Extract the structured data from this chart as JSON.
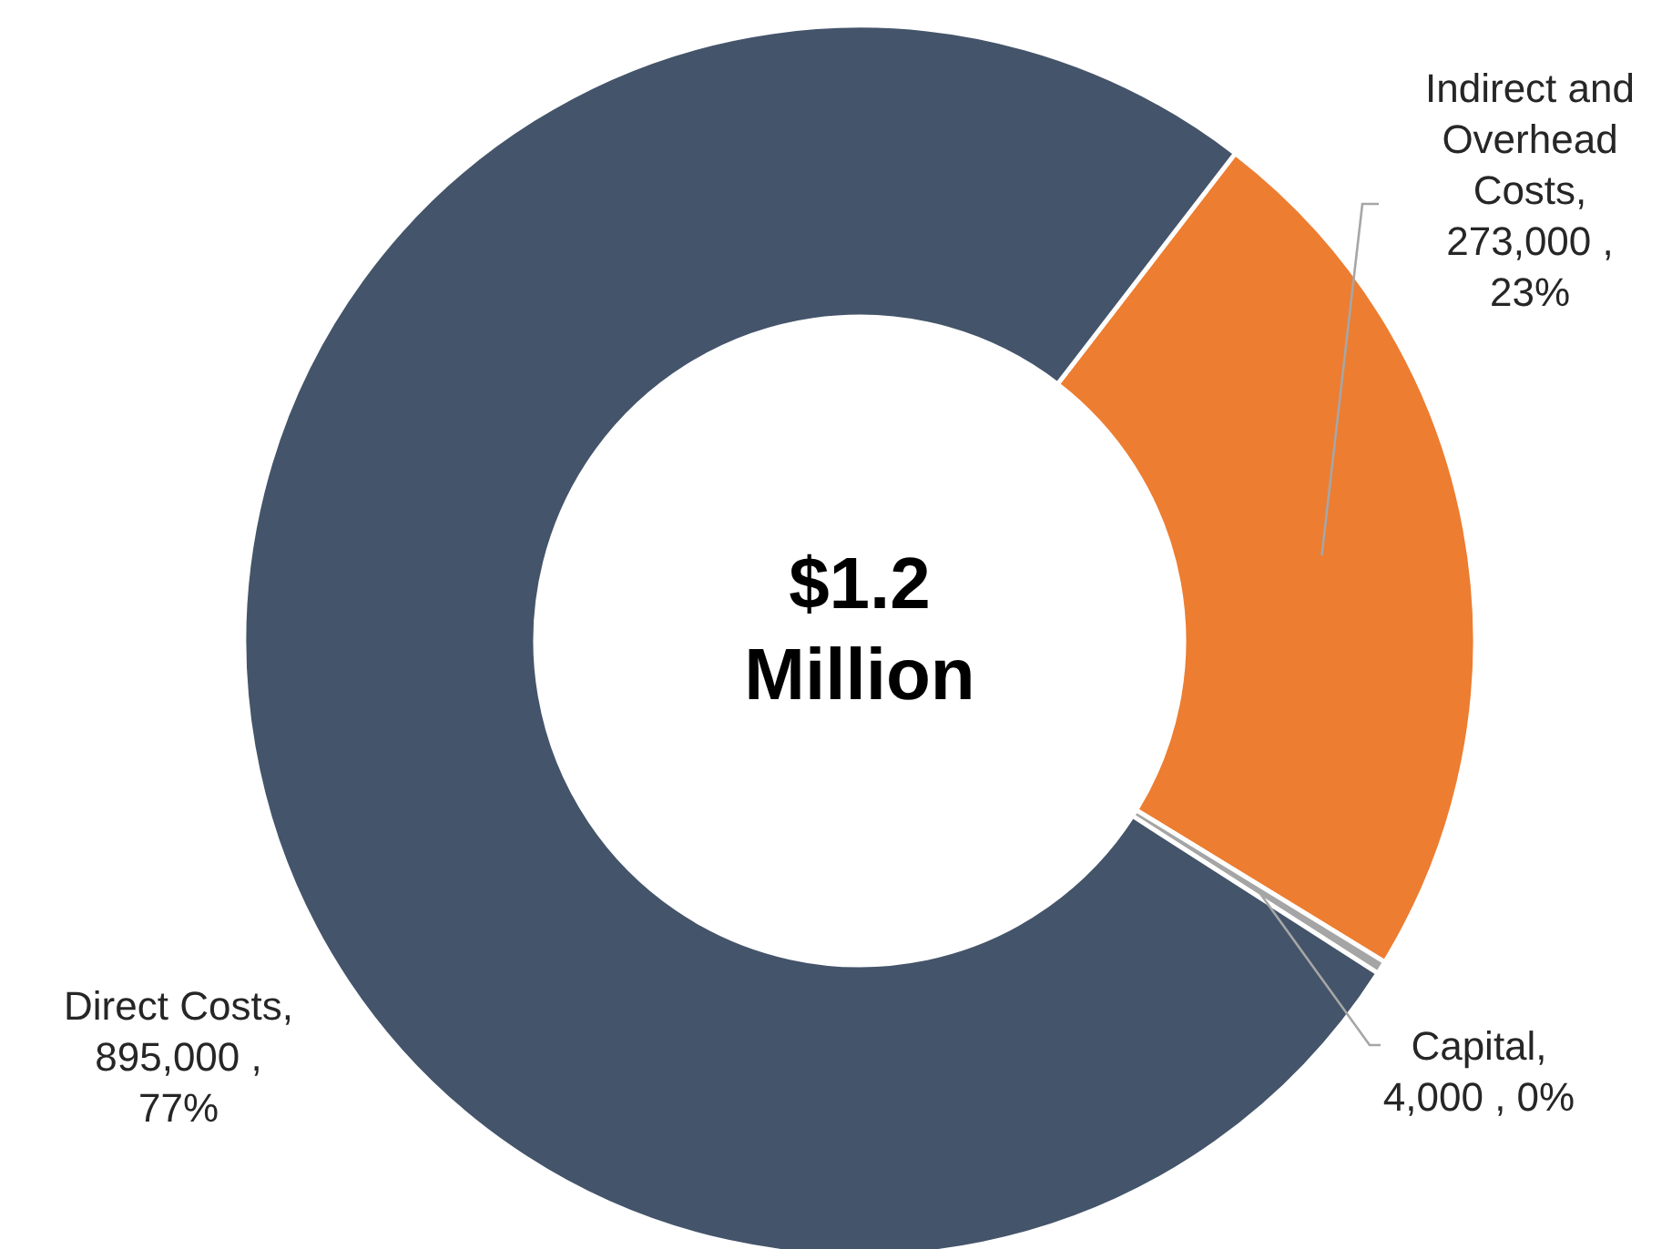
{
  "chart_data": {
    "type": "donut",
    "categories": [
      "Indirect and Overhead Costs",
      "Capital",
      "Direct Costs"
    ],
    "values": [
      273000,
      4000,
      895000
    ],
    "colors": [
      "#ed7d31",
      "#a5a5a5",
      "#44546a"
    ],
    "value_labels": [
      ", 273,000 , 23%",
      ", 4,000 , 0%",
      ", 895,000 , 77%"
    ],
    "annotations": [
      "$1.2 Million"
    ]
  }
}
